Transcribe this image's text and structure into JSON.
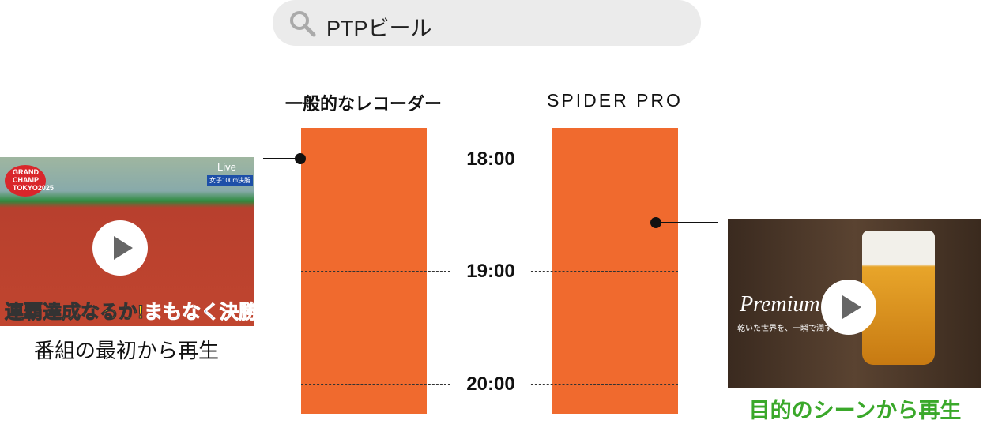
{
  "search": {
    "query": "PTPビール",
    "icon": "search-icon"
  },
  "columns": {
    "left_title": "一般的なレコーダー",
    "right_title": "SPIDER PRO"
  },
  "times": [
    "18:00",
    "19:00",
    "20:00"
  ],
  "left_video": {
    "caption": "番組の最初から再生",
    "overlay_brand": "GRAND CHAMP TOKYO2025",
    "live": "Live",
    "badge": "女子100m決勝",
    "headline_yellow": "連覇達成なるか!",
    "headline_blue": "まもなく決勝"
  },
  "right_video": {
    "caption": "目的のシーンから再生",
    "title": "Premium Beer",
    "subtitle": "乾いた世界を、一瞬で潤す"
  },
  "colors": {
    "bar": "#f06a2e",
    "right_caption": "#3aa82a"
  }
}
